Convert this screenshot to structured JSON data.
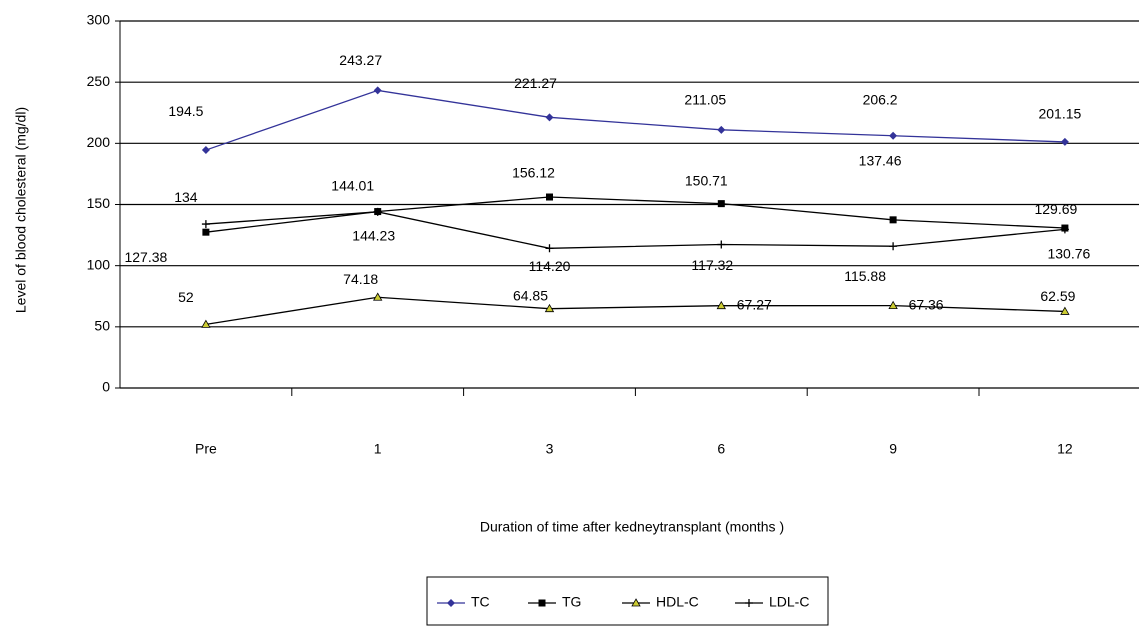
{
  "chart_data": {
    "type": "line",
    "x_label": "Duration of time after kedneytransplant       (months )",
    "y_label": "Level of blood cholesteral      (mg/dl)",
    "categories": [
      "Pre",
      "1",
      "3",
      "6",
      "9",
      "12"
    ],
    "ylim": [
      0,
      300
    ],
    "yticks": [
      0,
      50,
      100,
      150,
      200,
      250,
      300
    ],
    "grid": true,
    "series": [
      {
        "name": "TC",
        "color": "#333399",
        "marker": "diamond",
        "values": [
          194.5,
          243.27,
          221.27,
          211.05,
          206.2,
          201.15
        ]
      },
      {
        "name": "TG",
        "color": "#000000",
        "marker": "square",
        "values": [
          127.38,
          144.23,
          156.12,
          150.71,
          137.46,
          130.76
        ]
      },
      {
        "name": "HDL-C",
        "color": "#000000",
        "marker": "triangle",
        "values": [
          52,
          74.18,
          64.85,
          67.27,
          67.36,
          62.59
        ]
      },
      {
        "name": "LDL-C",
        "color": "#000000",
        "marker": "cross",
        "values": [
          134,
          144.01,
          114.2,
          117.32,
          115.88,
          129.69
        ],
        "value_labels": [
          "134",
          "144.01",
          "114.20",
          "117.32",
          "115.88",
          "129.69"
        ]
      }
    ]
  }
}
